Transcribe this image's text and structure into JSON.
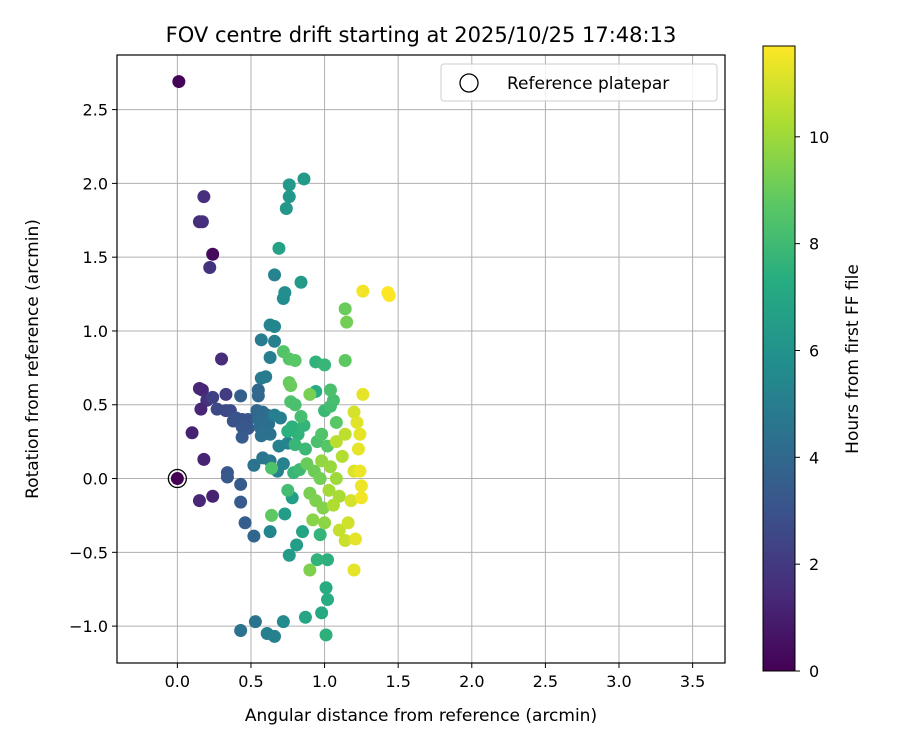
{
  "chart_data": {
    "type": "scatter",
    "title": "FOV centre drift starting at 2025/10/25 17:48:13",
    "xlabel": "Angular distance from reference (arcmin)",
    "ylabel": "Rotation from reference (arcmin)",
    "xlim": [
      -0.41,
      3.72
    ],
    "ylim": [
      -1.25,
      2.87
    ],
    "x_ticks": [
      0.0,
      0.5,
      1.0,
      1.5,
      2.0,
      2.5,
      3.0,
      3.5
    ],
    "x_tick_labels": [
      "0.0",
      "0.5",
      "1.0",
      "1.5",
      "2.0",
      "2.5",
      "3.0",
      "3.5"
    ],
    "y_ticks": [
      -1.0,
      -0.5,
      0.0,
      0.5,
      1.0,
      1.5,
      2.0,
      2.5
    ],
    "y_tick_labels": [
      "−1.0",
      "−0.5",
      "0.0",
      "0.5",
      "1.0",
      "1.5",
      "2.0",
      "2.5"
    ],
    "grid": true,
    "legend": {
      "position": "top-right",
      "entries": [
        "Reference platepar"
      ]
    },
    "reference_point": {
      "x": 0.0,
      "y": 0.0
    },
    "colorbar": {
      "label": "Hours from first FF file",
      "min": 0,
      "max": 11.7,
      "ticks": [
        0,
        2,
        4,
        6,
        8,
        10
      ],
      "tick_labels": [
        "0",
        "2",
        "4",
        "6",
        "8",
        "10"
      ],
      "colormap": "viridis"
    },
    "points": [
      {
        "x": 0.0,
        "y": 0.0,
        "h": 0.0
      },
      {
        "x": 0.01,
        "y": 2.69,
        "h": 0.1
      },
      {
        "x": 0.24,
        "y": 1.52,
        "h": 0.3
      },
      {
        "x": 0.18,
        "y": 1.91,
        "h": 1.6
      },
      {
        "x": 0.15,
        "y": 1.74,
        "h": 1.5
      },
      {
        "x": 0.17,
        "y": 1.74,
        "h": 1.6
      },
      {
        "x": 0.22,
        "y": 1.43,
        "h": 1.7
      },
      {
        "x": 0.3,
        "y": 0.81,
        "h": 1.5
      },
      {
        "x": 0.15,
        "y": 0.61,
        "h": 1.3
      },
      {
        "x": 0.17,
        "y": 0.6,
        "h": 1.3
      },
      {
        "x": 0.2,
        "y": 0.53,
        "h": 1.7
      },
      {
        "x": 0.16,
        "y": 0.47,
        "h": 1.3
      },
      {
        "x": 0.1,
        "y": 0.31,
        "h": 1.1
      },
      {
        "x": 0.18,
        "y": 0.13,
        "h": 1.2
      },
      {
        "x": 0.15,
        "y": -0.15,
        "h": 1.3
      },
      {
        "x": 0.24,
        "y": -0.12,
        "h": 1.2
      },
      {
        "x": 0.24,
        "y": 0.55,
        "h": 2.2
      },
      {
        "x": 0.33,
        "y": 0.57,
        "h": 2.1
      },
      {
        "x": 0.27,
        "y": 0.47,
        "h": 2.6
      },
      {
        "x": 0.33,
        "y": 0.46,
        "h": 2.6
      },
      {
        "x": 0.36,
        "y": 0.46,
        "h": 2.7
      },
      {
        "x": 0.4,
        "y": 0.41,
        "h": 3.0
      },
      {
        "x": 0.44,
        "y": 0.4,
        "h": 3.0
      },
      {
        "x": 0.48,
        "y": 0.4,
        "h": 3.1
      },
      {
        "x": 0.38,
        "y": 0.39,
        "h": 3.0
      },
      {
        "x": 0.44,
        "y": 0.35,
        "h": 3.2
      },
      {
        "x": 0.48,
        "y": 0.34,
        "h": 3.2
      },
      {
        "x": 0.44,
        "y": 0.28,
        "h": 3.4
      },
      {
        "x": 0.34,
        "y": 0.04,
        "h": 3.2
      },
      {
        "x": 0.34,
        "y": 0.01,
        "h": 3.3
      },
      {
        "x": 0.43,
        "y": -0.04,
        "h": 3.4
      },
      {
        "x": 0.43,
        "y": -0.16,
        "h": 3.4
      },
      {
        "x": 0.46,
        "y": -0.3,
        "h": 3.5
      },
      {
        "x": 0.52,
        "y": -0.39,
        "h": 3.9
      },
      {
        "x": 0.43,
        "y": 0.56,
        "h": 3.6
      },
      {
        "x": 0.55,
        "y": 0.6,
        "h": 3.9
      },
      {
        "x": 0.55,
        "y": 0.56,
        "h": 4.0
      },
      {
        "x": 0.54,
        "y": 0.46,
        "h": 4.0
      },
      {
        "x": 0.58,
        "y": 0.45,
        "h": 4.1
      },
      {
        "x": 0.61,
        "y": 0.43,
        "h": 4.2
      },
      {
        "x": 0.55,
        "y": 0.4,
        "h": 4.1
      },
      {
        "x": 0.58,
        "y": 0.38,
        "h": 4.2
      },
      {
        "x": 0.62,
        "y": 0.37,
        "h": 4.3
      },
      {
        "x": 0.56,
        "y": 0.35,
        "h": 4.2
      },
      {
        "x": 0.6,
        "y": 0.33,
        "h": 4.3
      },
      {
        "x": 0.57,
        "y": 0.29,
        "h": 4.4
      },
      {
        "x": 0.63,
        "y": 0.3,
        "h": 4.4
      },
      {
        "x": 0.52,
        "y": 0.09,
        "h": 4.5
      },
      {
        "x": 0.58,
        "y": 0.14,
        "h": 4.6
      },
      {
        "x": 0.63,
        "y": 0.12,
        "h": 4.7
      },
      {
        "x": 0.57,
        "y": 0.68,
        "h": 4.8
      },
      {
        "x": 0.6,
        "y": 0.69,
        "h": 4.9
      },
      {
        "x": 0.66,
        "y": 0.43,
        "h": 5.0
      },
      {
        "x": 0.7,
        "y": 0.41,
        "h": 5.0
      },
      {
        "x": 0.69,
        "y": 0.22,
        "h": 5.1
      },
      {
        "x": 0.75,
        "y": 0.24,
        "h": 5.3
      },
      {
        "x": 0.72,
        "y": 0.1,
        "h": 5.2
      },
      {
        "x": 0.68,
        "y": 0.05,
        "h": 5.2
      },
      {
        "x": 0.53,
        "y": -0.97,
        "h": 4.5
      },
      {
        "x": 0.43,
        "y": -1.03,
        "h": 4.4
      },
      {
        "x": 0.61,
        "y": -1.05,
        "h": 5.0
      },
      {
        "x": 0.66,
        "y": -1.07,
        "h": 5.1
      },
      {
        "x": 0.72,
        "y": -0.97,
        "h": 5.6
      },
      {
        "x": 0.57,
        "y": 0.94,
        "h": 4.9
      },
      {
        "x": 0.63,
        "y": 0.82,
        "h": 5.0
      },
      {
        "x": 0.66,
        "y": 0.93,
        "h": 5.1
      },
      {
        "x": 0.63,
        "y": 1.04,
        "h": 5.3
      },
      {
        "x": 0.66,
        "y": 1.03,
        "h": 5.4
      },
      {
        "x": 0.66,
        "y": 1.38,
        "h": 5.3
      },
      {
        "x": 0.72,
        "y": 1.22,
        "h": 5.7
      },
      {
        "x": 0.73,
        "y": 1.26,
        "h": 5.8
      },
      {
        "x": 0.69,
        "y": 1.56,
        "h": 6.7
      },
      {
        "x": 0.84,
        "y": 1.33,
        "h": 6.4
      },
      {
        "x": 0.74,
        "y": 1.83,
        "h": 6.2
      },
      {
        "x": 0.76,
        "y": 1.91,
        "h": 6.2
      },
      {
        "x": 0.76,
        "y": 1.99,
        "h": 6.3
      },
      {
        "x": 0.86,
        "y": 2.03,
        "h": 6.3
      },
      {
        "x": 0.63,
        "y": -0.36,
        "h": 5.4
      },
      {
        "x": 0.76,
        "y": -0.52,
        "h": 6.4
      },
      {
        "x": 0.81,
        "y": -0.45,
        "h": 6.5
      },
      {
        "x": 0.73,
        "y": -0.24,
        "h": 6.5
      },
      {
        "x": 0.78,
        "y": -0.13,
        "h": 6.6
      },
      {
        "x": 0.85,
        "y": -0.36,
        "h": 6.8
      },
      {
        "x": 0.87,
        "y": -0.94,
        "h": 6.9
      },
      {
        "x": 0.98,
        "y": -0.91,
        "h": 7.1
      },
      {
        "x": 1.01,
        "y": -0.74,
        "h": 7.2
      },
      {
        "x": 1.02,
        "y": -0.82,
        "h": 7.3
      },
      {
        "x": 1.01,
        "y": -1.06,
        "h": 7.5
      },
      {
        "x": 1.02,
        "y": -0.55,
        "h": 7.5
      },
      {
        "x": 0.95,
        "y": -0.55,
        "h": 7.6
      },
      {
        "x": 0.97,
        "y": -0.38,
        "h": 7.7
      },
      {
        "x": 0.75,
        "y": 0.32,
        "h": 7.4
      },
      {
        "x": 0.78,
        "y": 0.35,
        "h": 7.5
      },
      {
        "x": 0.82,
        "y": 0.3,
        "h": 7.6
      },
      {
        "x": 0.86,
        "y": 0.36,
        "h": 7.7
      },
      {
        "x": 0.8,
        "y": 0.23,
        "h": 7.8
      },
      {
        "x": 0.87,
        "y": 0.2,
        "h": 7.9
      },
      {
        "x": 0.79,
        "y": 0.04,
        "h": 7.8
      },
      {
        "x": 0.83,
        "y": 0.06,
        "h": 8.0
      },
      {
        "x": 0.75,
        "y": -0.08,
        "h": 8.1
      },
      {
        "x": 0.77,
        "y": 0.52,
        "h": 8.4
      },
      {
        "x": 0.8,
        "y": 0.5,
        "h": 8.3
      },
      {
        "x": 0.84,
        "y": 0.42,
        "h": 8.2
      },
      {
        "x": 0.64,
        "y": 0.07,
        "h": 8.4
      },
      {
        "x": 0.64,
        "y": -0.25,
        "h": 8.8
      },
      {
        "x": 0.72,
        "y": 0.86,
        "h": 8.5
      },
      {
        "x": 0.76,
        "y": 0.81,
        "h": 8.6
      },
      {
        "x": 0.8,
        "y": 0.8,
        "h": 8.7
      },
      {
        "x": 0.76,
        "y": 0.65,
        "h": 8.9
      },
      {
        "x": 0.77,
        "y": 0.63,
        "h": 9.0
      },
      {
        "x": 0.94,
        "y": 0.79,
        "h": 7.6
      },
      {
        "x": 1.0,
        "y": 0.77,
        "h": 7.8
      },
      {
        "x": 0.94,
        "y": 0.59,
        "h": 7.2
      },
      {
        "x": 1.0,
        "y": 0.46,
        "h": 7.9
      },
      {
        "x": 1.04,
        "y": 0.49,
        "h": 8.1
      },
      {
        "x": 1.06,
        "y": 0.53,
        "h": 8.2
      },
      {
        "x": 1.04,
        "y": 0.6,
        "h": 8.3
      },
      {
        "x": 0.95,
        "y": 0.25,
        "h": 8.3
      },
      {
        "x": 0.98,
        "y": 0.3,
        "h": 8.5
      },
      {
        "x": 1.02,
        "y": 0.22,
        "h": 8.6
      },
      {
        "x": 1.08,
        "y": 0.38,
        "h": 8.7
      },
      {
        "x": 1.14,
        "y": 0.8,
        "h": 8.8
      },
      {
        "x": 1.14,
        "y": 1.15,
        "h": 9.0
      },
      {
        "x": 1.15,
        "y": 1.06,
        "h": 9.2
      },
      {
        "x": 0.9,
        "y": 0.57,
        "h": 9.3
      },
      {
        "x": 0.88,
        "y": 0.1,
        "h": 9.0
      },
      {
        "x": 0.93,
        "y": 0.05,
        "h": 9.1
      },
      {
        "x": 0.97,
        "y": 0.0,
        "h": 9.2
      },
      {
        "x": 0.9,
        "y": -0.1,
        "h": 9.3
      },
      {
        "x": 0.94,
        "y": -0.15,
        "h": 9.4
      },
      {
        "x": 0.99,
        "y": -0.2,
        "h": 9.5
      },
      {
        "x": 0.92,
        "y": -0.28,
        "h": 9.6
      },
      {
        "x": 1.0,
        "y": -0.3,
        "h": 9.7
      },
      {
        "x": 0.9,
        "y": -0.62,
        "h": 9.4
      },
      {
        "x": 0.98,
        "y": 0.12,
        "h": 9.8
      },
      {
        "x": 1.04,
        "y": 0.08,
        "h": 9.9
      },
      {
        "x": 1.08,
        "y": 0.0,
        "h": 10.0
      },
      {
        "x": 1.03,
        "y": -0.08,
        "h": 10.1
      },
      {
        "x": 1.1,
        "y": -0.12,
        "h": 10.2
      },
      {
        "x": 1.06,
        "y": -0.18,
        "h": 10.3
      },
      {
        "x": 1.12,
        "y": 0.15,
        "h": 10.4
      },
      {
        "x": 1.08,
        "y": 0.25,
        "h": 10.5
      },
      {
        "x": 1.14,
        "y": 0.3,
        "h": 10.6
      },
      {
        "x": 1.1,
        "y": -0.35,
        "h": 10.7
      },
      {
        "x": 1.14,
        "y": -0.42,
        "h": 10.8
      },
      {
        "x": 1.16,
        "y": -0.3,
        "h": 10.9
      },
      {
        "x": 1.18,
        "y": -0.15,
        "h": 11.0
      },
      {
        "x": 1.2,
        "y": 0.05,
        "h": 11.1
      },
      {
        "x": 1.2,
        "y": 0.45,
        "h": 11.0
      },
      {
        "x": 1.22,
        "y": 0.38,
        "h": 11.2
      },
      {
        "x": 1.24,
        "y": 0.3,
        "h": 11.3
      },
      {
        "x": 1.23,
        "y": 0.2,
        "h": 11.3
      },
      {
        "x": 1.24,
        "y": 0.05,
        "h": 11.4
      },
      {
        "x": 1.25,
        "y": -0.05,
        "h": 11.4
      },
      {
        "x": 1.25,
        "y": -0.13,
        "h": 11.5
      },
      {
        "x": 1.21,
        "y": -0.41,
        "h": 11.3
      },
      {
        "x": 1.2,
        "y": -0.62,
        "h": 11.3
      },
      {
        "x": 1.26,
        "y": 0.57,
        "h": 11.3
      },
      {
        "x": 1.26,
        "y": 1.27,
        "h": 11.5
      },
      {
        "x": 1.43,
        "y": 1.26,
        "h": 11.7
      },
      {
        "x": 1.44,
        "y": 1.24,
        "h": 11.7
      }
    ]
  }
}
